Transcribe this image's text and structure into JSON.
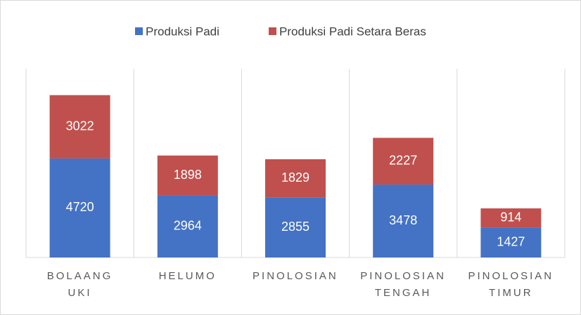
{
  "chart_data": {
    "type": "stacked_bar",
    "categories": [
      "BOLAANG\nUKI",
      "HELUMO",
      "PINOLOSIAN",
      "PINOLOSIAN\nTENGAH",
      "PINOLOSIAN\nTIMUR"
    ],
    "series": [
      {
        "name": "Produksi Padi",
        "color": "#4472c4",
        "values": [
          4720,
          2964,
          2855,
          3478,
          1427
        ]
      },
      {
        "name": "Produksi Padi Setara Beras",
        "color": "#c0504d",
        "values": [
          3022,
          1898,
          1829,
          2227,
          914
        ]
      }
    ],
    "ylim": [
      0,
      9000
    ],
    "legend": "top"
  }
}
